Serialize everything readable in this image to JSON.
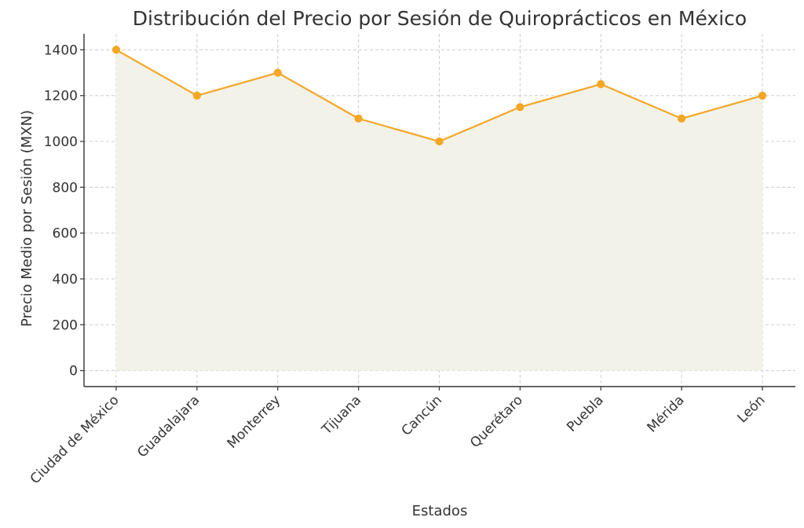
{
  "chart_data": {
    "type": "line",
    "title": "Distribución del Precio por Sesión de Quiroprácticos en México",
    "xlabel": "Estados",
    "ylabel": "Precio Medio por Sesión (MXN)",
    "categories": [
      "Ciudad de México",
      "Guadalajara",
      "Monterrey",
      "Tijuana",
      "Cancún",
      "Querétaro",
      "Puebla",
      "Mérida",
      "León"
    ],
    "values": [
      1400,
      1200,
      1300,
      1100,
      1000,
      1150,
      1250,
      1100,
      1200
    ],
    "ylim": [
      -70,
      1470
    ],
    "yticks": [
      0,
      200,
      400,
      600,
      800,
      1000,
      1200,
      1400
    ],
    "grid": true,
    "fill_under_line": true,
    "colors": {
      "line": "#f5a623",
      "marker": "#f5a623",
      "fill": "#f2f2e9"
    }
  }
}
